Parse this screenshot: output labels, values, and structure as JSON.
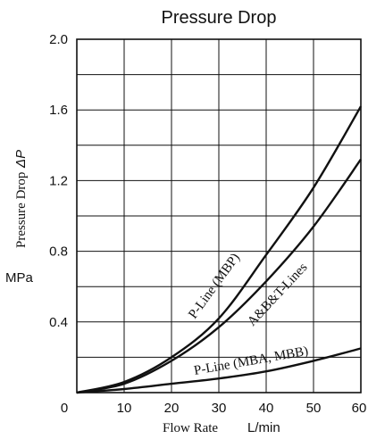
{
  "chart_data": {
    "type": "line",
    "title": "Pressure Drop",
    "ylabel_text": "Pressure Drop",
    "ylabel_symbol": "ΔP",
    "yunit": "MPa",
    "xlabel_text": "Flow Rate",
    "xunit": "L/min",
    "xlim": [
      0,
      60
    ],
    "ylim": [
      0,
      2.0
    ],
    "grid": true,
    "x_ticks": [
      "0",
      "10",
      "20",
      "30",
      "40",
      "50",
      "60"
    ],
    "x_tick_values": [
      0,
      10,
      20,
      30,
      40,
      50,
      60
    ],
    "y_ticks": [
      "2.0",
      "1.6",
      "1.2",
      "0.8",
      "0.4"
    ],
    "y_tick_values": [
      2.0,
      1.6,
      1.2,
      0.8,
      0.4
    ],
    "series": [
      {
        "name": "P-Line (MBP)",
        "x": [
          0,
          10,
          20,
          30,
          40,
          50,
          60
        ],
        "y": [
          0.0,
          0.06,
          0.2,
          0.42,
          0.78,
          1.16,
          1.62
        ]
      },
      {
        "name": "A&B&T-Lines",
        "x": [
          0,
          10,
          20,
          30,
          40,
          50,
          60
        ],
        "y": [
          0.0,
          0.05,
          0.18,
          0.37,
          0.63,
          0.94,
          1.32
        ]
      },
      {
        "name": "P-Line (MBA, MBB)",
        "x": [
          0,
          10,
          20,
          30,
          40,
          50,
          60
        ],
        "y": [
          0.0,
          0.02,
          0.05,
          0.08,
          0.12,
          0.18,
          0.25
        ]
      }
    ]
  }
}
